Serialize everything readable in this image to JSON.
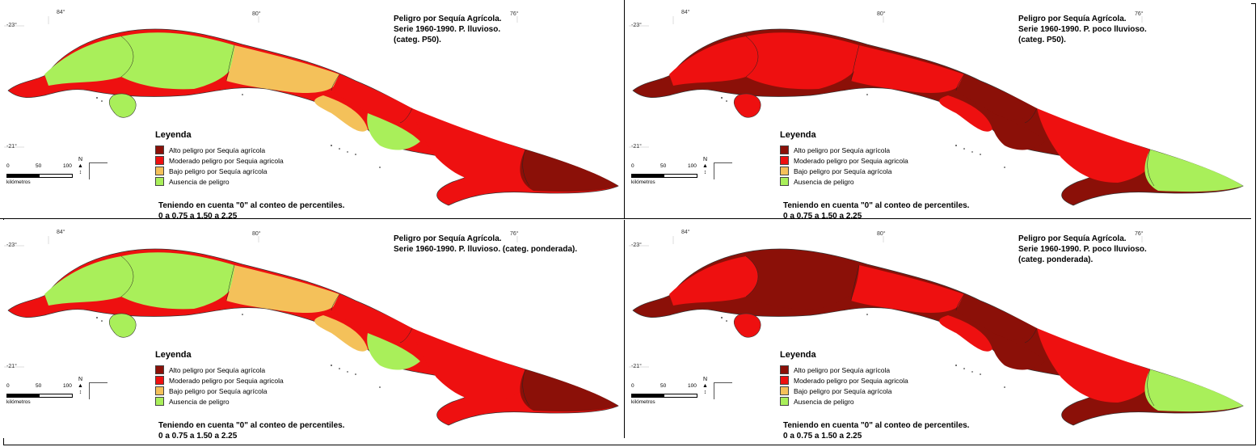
{
  "colors": {
    "alto": "#8b1008",
    "moderado": "#ee1010",
    "bajo": "#f4c15a",
    "ausencia": "#a9ef5a"
  },
  "common": {
    "coords": {
      "lon84": "84°",
      "lon80": "80°",
      "lon76": "76°",
      "lat23": "-23°",
      "lat21": "-21°"
    },
    "legend_title": "Leyenda",
    "legend_items": [
      {
        "label": "Alto peligro por Sequía agrícola",
        "key": "alto"
      },
      {
        "label": "Moderado peligro por Sequia agricola",
        "key": "moderado"
      },
      {
        "label": "Bajo peligro por Sequía agrícola",
        "key": "bajo"
      },
      {
        "label": "Ausencia de peligro",
        "key": "ausencia"
      }
    ],
    "note": "Teniendo en cuenta \"0\" al conteo de percentiles.\n0 a 0.75 a 1.50 a 2.25",
    "scale": {
      "l0": "0",
      "l50": "50",
      "l100": "100",
      "unit": "kilómetros"
    },
    "north": "N\n▲\n↕"
  },
  "panels": [
    {
      "title": "Peligro por Sequía Agrícola.\nSerie 1960-1990. P. lluvioso.\n(categ. P50).",
      "base": "moderado",
      "regions": [
        "ausencia",
        "ausencia",
        "bajo",
        "moderado",
        "bajo",
        "ausencia",
        "moderado",
        "alto"
      ]
    },
    {
      "title": "Peligro por Sequía Agrícola.\nSerie 1960-1990. P. poco lluvioso.\n(categ. P50).",
      "base": "alto",
      "regions": [
        "moderado",
        "moderado",
        "moderado",
        "alto",
        "moderado",
        "alto",
        "moderado",
        "ausencia"
      ]
    },
    {
      "title": "Peligro por Sequía Agrícola.\nSerie 1960-1990. P. lluvioso. (categ. ponderada).",
      "base": "moderado",
      "regions": [
        "ausencia",
        "ausencia",
        "bajo",
        "moderado",
        "bajo",
        "ausencia",
        "moderado",
        "alto"
      ]
    },
    {
      "title": "Peligro por Sequía Agrícola.\nSerie 1960-1990. P. poco lluvioso.\n(categ. ponderada).",
      "base": "alto",
      "regions": [
        "moderado",
        "alto",
        "moderado",
        "alto",
        "moderado",
        "alto",
        "moderado",
        "ausencia"
      ]
    }
  ]
}
